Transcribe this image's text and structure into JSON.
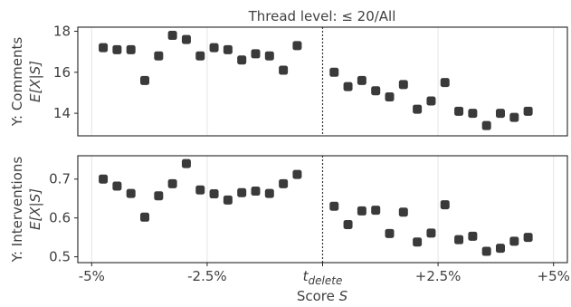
{
  "chart_data": {
    "type": "scatter",
    "title": "Thread level: ≤ 20/All",
    "x_tick_labels": [
      "-5%",
      "-2.5%",
      "t_delete",
      "+2.5%",
      "+5%"
    ],
    "x_ticks": [
      -5,
      -2.5,
      0,
      2.5,
      5
    ],
    "xlabel": "Score S",
    "xlim": [
      -5.3,
      5.3
    ],
    "cutoff_x": 0,
    "grid": "vertical",
    "marker_color": "#3a3a3a",
    "panels": [
      {
        "ylabel_line1": "Y: Comments",
        "ylabel_line2": "E[X|S]",
        "ylim": [
          12.9,
          18.2
        ],
        "y_ticks": [
          14,
          16,
          18
        ],
        "y_tick_labels": [
          "14",
          "16",
          "18"
        ],
        "x": [
          -4.75,
          -4.45,
          -4.15,
          -3.85,
          -3.55,
          -3.25,
          -2.95,
          -2.65,
          -2.35,
          -2.05,
          -1.75,
          -1.45,
          -1.15,
          -0.85,
          -0.55,
          -0.25,
          0.25,
          0.55,
          0.85,
          1.15,
          1.45,
          1.75,
          2.05,
          2.35,
          2.65,
          2.95,
          3.25,
          3.55,
          3.85,
          4.15,
          4.45,
          4.75
        ],
        "y": [
          17.2,
          17.1,
          17.1,
          15.6,
          16.8,
          17.8,
          17.6,
          16.8,
          17.2,
          17.1,
          16.6,
          16.9,
          16.8,
          16.1,
          17.3,
          null,
          16.0,
          15.3,
          15.6,
          15.1,
          14.8,
          15.4,
          14.2,
          14.6,
          15.5,
          14.1,
          14.0,
          13.4,
          14.0,
          13.8,
          14.1,
          null
        ]
      },
      {
        "ylabel_line1": "Y: Interventions",
        "ylabel_line2": "E[X|S]",
        "ylim": [
          0.485,
          0.76
        ],
        "y_ticks": [
          0.5,
          0.6,
          0.7
        ],
        "y_tick_labels": [
          "0.5",
          "0.6",
          "0.7"
        ],
        "x": [
          -4.75,
          -4.45,
          -4.15,
          -3.85,
          -3.55,
          -3.25,
          -2.95,
          -2.65,
          -2.35,
          -2.05,
          -1.75,
          -1.45,
          -1.15,
          -0.85,
          -0.55,
          -0.25,
          0.25,
          0.55,
          0.85,
          1.15,
          1.45,
          1.75,
          2.05,
          2.35,
          2.65,
          2.95,
          3.25,
          3.55,
          3.85,
          4.15,
          4.45,
          4.75
        ],
        "y": [
          0.7,
          0.682,
          0.663,
          0.602,
          0.657,
          0.688,
          0.74,
          0.672,
          0.662,
          0.646,
          0.665,
          0.669,
          0.663,
          0.688,
          0.712,
          null,
          0.63,
          0.583,
          0.618,
          0.62,
          0.56,
          0.615,
          0.538,
          0.561,
          0.634,
          0.544,
          0.553,
          0.514,
          0.522,
          0.54,
          0.55,
          null
        ]
      }
    ]
  }
}
